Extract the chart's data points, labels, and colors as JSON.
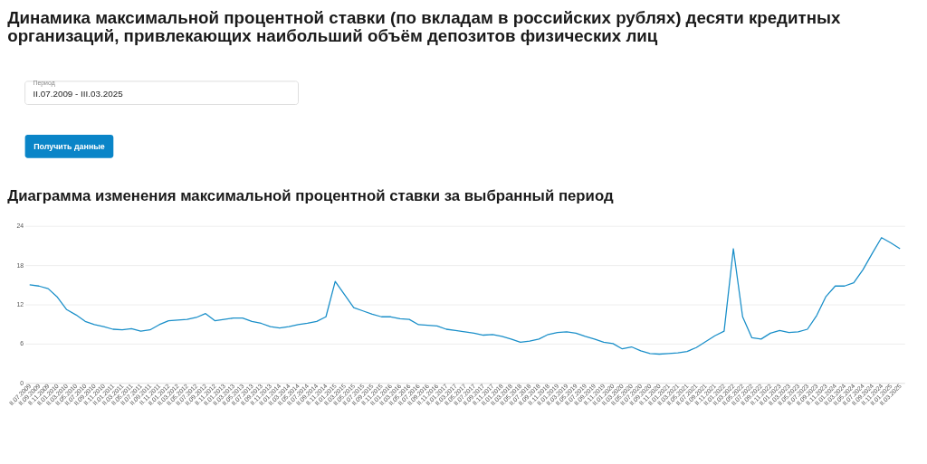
{
  "chart_data": {
    "type": "line",
    "title": "Динамика максимальной процентной ставки (по вкладам в российских рублях) десяти кредитных организаций, привлекающих наибольший объём депозитов физических лиц",
    "subtitle": "Диаграмма изменения максимальной процентной ставки за выбранный период",
    "annotations": [
      "Период",
      "II.07.2009 - III.03.2025",
      "Получить данные"
    ],
    "categories": [
      "II.07.2009",
      "II.09.2009",
      "II.11.2009",
      "II.01.2010",
      "II.03.2010",
      "II.05.2010",
      "II.07.2010",
      "II.09.2010",
      "II.11.2010",
      "II.01.2011",
      "II.03.2011",
      "II.05.2011",
      "II.07.2011",
      "II.09.2011",
      "II.11.2011",
      "II.01.2012",
      "II.03.2012",
      "II.05.2012",
      "II.07.2012",
      "II.09.2012",
      "II.11.2012",
      "II.01.2013",
      "II.03.2013",
      "II.05.2013",
      "II.07.2013",
      "II.09.2013",
      "II.11.2013",
      "II.01.2014",
      "II.03.2014",
      "II.05.2014",
      "II.07.2014",
      "II.09.2014",
      "II.11.2014",
      "II.01.2015",
      "II.03.2015",
      "II.05.2015",
      "II.07.2015",
      "II.09.2015",
      "II.11.2015",
      "II.01.2016",
      "II.03.2016",
      "II.05.2016",
      "II.07.2016",
      "II.09.2016",
      "II.11.2016",
      "II.01.2017",
      "II.03.2017",
      "II.05.2017",
      "II.07.2017",
      "II.09.2017",
      "II.11.2017",
      "II.01.2018",
      "II.03.2018",
      "II.05.2018",
      "II.07.2018",
      "II.09.2018",
      "II.11.2018",
      "II.01.2019",
      "II.03.2019",
      "II.05.2019",
      "II.07.2019",
      "II.09.2019",
      "II.11.2019",
      "II.01.2020",
      "II.03.2020",
      "II.05.2020",
      "II.07.2020",
      "II.09.2020",
      "II.11.2020",
      "II.01.2021",
      "II.03.2021",
      "II.05.2021",
      "II.07.2021",
      "II.09.2021",
      "II.11.2021",
      "II.01.2022",
      "II.03.2022",
      "II.05.2022",
      "II.07.2022",
      "II.09.2022",
      "II.11.2022",
      "II.01.2023",
      "II.03.2023",
      "II.05.2023",
      "II.07.2023",
      "II.09.2023",
      "II.11.2023",
      "II.01.2024",
      "II.03.2024",
      "II.05.2024",
      "II.07.2024",
      "II.09.2024",
      "II.11.2024",
      "II.01.2025",
      "II.03.2025"
    ],
    "series": [
      {
        "color": "#1a8fc9",
        "values": [
          15.0,
          14.8,
          14.4,
          13.1,
          11.2,
          10.4,
          9.4,
          8.9,
          8.6,
          8.2,
          8.1,
          8.3,
          7.9,
          8.1,
          8.9,
          9.5,
          9.6,
          9.7,
          10.0,
          10.6,
          9.5,
          9.7,
          9.9,
          9.9,
          9.4,
          9.1,
          8.6,
          8.4,
          8.6,
          8.9,
          9.1,
          9.4,
          10.1,
          15.5,
          13.5,
          11.5,
          11.0,
          10.5,
          10.1,
          10.1,
          9.8,
          9.7,
          8.9,
          8.8,
          8.7,
          8.2,
          8.0,
          7.8,
          7.6,
          7.3,
          7.4,
          7.1,
          6.7,
          6.2,
          6.4,
          6.7,
          7.4,
          7.7,
          7.8,
          7.6,
          7.1,
          6.7,
          6.2,
          6.0,
          5.2,
          5.5,
          4.9,
          4.5,
          4.4,
          4.5,
          4.6,
          4.8,
          5.4,
          6.3,
          7.2,
          7.9,
          20.5,
          10.1,
          6.9,
          6.7,
          7.6,
          8.0,
          7.7,
          7.8,
          8.2,
          10.3,
          13.2,
          14.8,
          14.8,
          15.3,
          17.3,
          19.8,
          22.2,
          21.4,
          20.5
        ]
      }
    ],
    "ylim": [
      0,
      24
    ],
    "yticks": [
      0,
      6,
      12,
      18,
      24
    ],
    "grid": "y",
    "marker": "none",
    "line_style": "solid"
  }
}
